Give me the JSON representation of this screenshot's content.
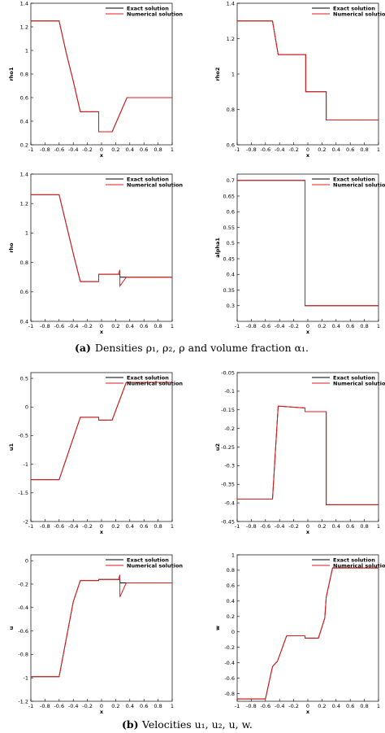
{
  "chart_data": [
    {
      "type": "line",
      "x_label": "x",
      "y_label": "rho1",
      "x": [
        -1,
        -0.6,
        -0.5,
        -0.4,
        -0.3,
        -0.04,
        -0.04,
        0.15,
        0.36,
        1
      ],
      "series": [
        {
          "name": "Exact solution",
          "color": "#000000",
          "values": [
            1.25,
            1.25,
            0.98,
            0.74,
            0.48,
            0.48,
            0.31,
            0.31,
            0.6,
            0.6
          ]
        },
        {
          "name": "Numerical solution",
          "color": "#e41a1c",
          "values": [
            1.25,
            1.25,
            0.98,
            0.74,
            0.48,
            0.48,
            0.31,
            0.31,
            0.6,
            0.6
          ]
        }
      ],
      "xlim": [
        -1,
        1
      ],
      "xticks": [
        -1,
        -0.8,
        -0.6,
        -0.4,
        -0.2,
        0,
        0.2,
        0.4,
        0.6,
        0.8,
        1
      ],
      "ylim": [
        0.2,
        1.4
      ],
      "yticks": [
        0.2,
        0.4,
        0.6,
        0.8,
        1,
        1.2,
        1.4
      ]
    },
    {
      "type": "line",
      "x_label": "x",
      "y_label": "rho2",
      "x": [
        -1,
        -0.5,
        -0.42,
        -0.03,
        -0.03,
        0.26,
        0.26,
        1
      ],
      "series": [
        {
          "name": "Exact solution",
          "color": "#000000",
          "values": [
            1.3,
            1.3,
            1.11,
            1.11,
            0.9,
            0.9,
            0.74,
            0.74
          ]
        },
        {
          "name": "Numerical solution",
          "color": "#e41a1c",
          "values": [
            1.3,
            1.3,
            1.11,
            1.11,
            0.9,
            0.9,
            0.74,
            0.74
          ]
        }
      ],
      "xlim": [
        -1,
        1
      ],
      "xticks": [
        -1,
        -0.8,
        -0.6,
        -0.4,
        -0.2,
        0,
        0.2,
        0.4,
        0.6,
        0.8,
        1
      ],
      "ylim": [
        0.6,
        1.4
      ],
      "yticks": [
        0.6,
        0.8,
        1,
        1.2,
        1.4
      ]
    },
    {
      "type": "line",
      "x_label": "x",
      "y_label": "rho",
      "x": [
        -1,
        -0.6,
        -0.5,
        -0.4,
        -0.3,
        -0.04,
        -0.04,
        0.24,
        0.26,
        0.26,
        0.35,
        1
      ],
      "series": [
        {
          "name": "Exact solution",
          "color": "#000000",
          "values": [
            1.26,
            1.26,
            1.06,
            0.86,
            0.67,
            0.67,
            0.72,
            0.72,
            0.72,
            0.7,
            0.7,
            0.7
          ]
        },
        {
          "name": "Numerical solution",
          "color": "#e41a1c",
          "values": [
            1.26,
            1.26,
            1.06,
            0.86,
            0.67,
            0.67,
            0.72,
            0.72,
            0.75,
            0.64,
            0.7,
            0.7
          ]
        }
      ],
      "xlim": [
        -1,
        1
      ],
      "xticks": [
        -1,
        -0.8,
        -0.6,
        -0.4,
        -0.2,
        0,
        0.2,
        0.4,
        0.6,
        0.8,
        1
      ],
      "ylim": [
        0.4,
        1.4
      ],
      "yticks": [
        0.4,
        0.6,
        0.8,
        1,
        1.2,
        1.4
      ]
    },
    {
      "type": "line",
      "x_label": "x",
      "y_label": "alpha1",
      "x": [
        -1,
        -0.04,
        -0.04,
        1
      ],
      "series": [
        {
          "name": "Exact solution",
          "color": "#000000",
          "values": [
            0.7,
            0.7,
            0.3,
            0.3
          ]
        },
        {
          "name": "Numerical solution",
          "color": "#e41a1c",
          "values": [
            0.7,
            0.7,
            0.3,
            0.3
          ]
        }
      ],
      "xlim": [
        -1,
        1
      ],
      "xticks": [
        -1,
        -0.8,
        -0.6,
        -0.4,
        -0.2,
        0,
        0.2,
        0.4,
        0.6,
        0.8,
        1
      ],
      "ylim": [
        0.25,
        0.72
      ],
      "yticks": [
        0.3,
        0.35,
        0.4,
        0.45,
        0.5,
        0.55,
        0.6,
        0.65,
        0.7
      ]
    },
    {
      "type": "line",
      "x_label": "x",
      "y_label": "u1",
      "x": [
        -1,
        -0.6,
        -0.3,
        -0.04,
        -0.04,
        0.15,
        0.35,
        1
      ],
      "series": [
        {
          "name": "Exact solution",
          "color": "#000000",
          "values": [
            -1.27,
            -1.27,
            -0.18,
            -0.18,
            -0.23,
            -0.23,
            0.43,
            0.43
          ]
        },
        {
          "name": "Numerical solution",
          "color": "#e41a1c",
          "values": [
            -1.27,
            -1.27,
            -0.18,
            -0.18,
            -0.23,
            -0.23,
            0.43,
            0.43
          ]
        }
      ],
      "xlim": [
        -1,
        1
      ],
      "xticks": [
        -1,
        -0.8,
        -0.6,
        -0.4,
        -0.2,
        0,
        0.2,
        0.4,
        0.6,
        0.8,
        1
      ],
      "ylim": [
        -2,
        0.6
      ],
      "yticks": [
        -2,
        -1.5,
        -1,
        -0.5,
        0,
        0.5
      ]
    },
    {
      "type": "line",
      "x_label": "x",
      "y_label": "u2",
      "x": [
        -1,
        -0.5,
        -0.42,
        -0.04,
        -0.04,
        0.26,
        0.26,
        1
      ],
      "series": [
        {
          "name": "Exact solution",
          "color": "#000000",
          "values": [
            -0.39,
            -0.39,
            -0.14,
            -0.145,
            -0.155,
            -0.155,
            -0.405,
            -0.405
          ]
        },
        {
          "name": "Numerical solution",
          "color": "#e41a1c",
          "values": [
            -0.39,
            -0.39,
            -0.14,
            -0.145,
            -0.155,
            -0.155,
            -0.405,
            -0.405
          ]
        }
      ],
      "xlim": [
        -1,
        1
      ],
      "xticks": [
        -1,
        -0.8,
        -0.6,
        -0.4,
        -0.2,
        0,
        0.2,
        0.4,
        0.6,
        0.8,
        1
      ],
      "ylim": [
        -0.45,
        -0.05
      ],
      "yticks": [
        -0.45,
        -0.4,
        -0.35,
        -0.3,
        -0.25,
        -0.2,
        -0.15,
        -0.1,
        -0.05
      ]
    },
    {
      "type": "line",
      "x_label": "x",
      "y_label": "u",
      "x": [
        -1,
        -0.6,
        -0.4,
        -0.3,
        -0.04,
        -0.04,
        0.24,
        0.26,
        0.26,
        0.35,
        1
      ],
      "series": [
        {
          "name": "Exact solution",
          "color": "#000000",
          "values": [
            -0.99,
            -0.99,
            -0.35,
            -0.17,
            -0.17,
            -0.16,
            -0.16,
            -0.16,
            -0.19,
            -0.19,
            -0.19
          ]
        },
        {
          "name": "Numerical solution",
          "color": "#e41a1c",
          "values": [
            -0.99,
            -0.99,
            -0.35,
            -0.17,
            -0.17,
            -0.16,
            -0.16,
            -0.12,
            -0.31,
            -0.19,
            -0.19
          ]
        }
      ],
      "xlim": [
        -1,
        1
      ],
      "xticks": [
        -1,
        -0.8,
        -0.6,
        -0.4,
        -0.2,
        0,
        0.2,
        0.4,
        0.6,
        0.8,
        1
      ],
      "ylim": [
        -1.2,
        0.05
      ],
      "yticks": [
        -1.2,
        -1,
        -0.8,
        -0.6,
        -0.4,
        -0.2,
        0
      ]
    },
    {
      "type": "line",
      "x_label": "x",
      "y_label": "w",
      "x": [
        -1,
        -0.6,
        -0.5,
        -0.43,
        -0.3,
        -0.04,
        -0.04,
        0.15,
        0.24,
        0.26,
        0.35,
        1
      ],
      "series": [
        {
          "name": "Exact solution",
          "color": "#000000",
          "values": [
            -0.87,
            -0.87,
            -0.45,
            -0.38,
            -0.05,
            -0.05,
            -0.08,
            -0.08,
            0.18,
            0.45,
            0.83,
            0.83
          ]
        },
        {
          "name": "Numerical solution",
          "color": "#e41a1c",
          "values": [
            -0.87,
            -0.87,
            -0.45,
            -0.38,
            -0.05,
            -0.05,
            -0.08,
            -0.08,
            0.18,
            0.45,
            0.83,
            0.83
          ]
        }
      ],
      "xlim": [
        -1,
        1
      ],
      "xticks": [
        -1,
        -0.8,
        -0.6,
        -0.4,
        -0.2,
        0,
        0.2,
        0.4,
        0.6,
        0.8,
        1
      ],
      "ylim": [
        -0.9,
        1
      ],
      "yticks": [
        -0.8,
        -0.6,
        -0.4,
        -0.2,
        0,
        0.2,
        0.4,
        0.6,
        0.8,
        1
      ]
    }
  ],
  "captions": [
    {
      "label": "(a)",
      "text": "Densities ρ₁, ρ₂, ρ and volume fraction α₁."
    },
    {
      "label": "(b)",
      "text": "Velocities u₁, u₂, u, w."
    }
  ]
}
